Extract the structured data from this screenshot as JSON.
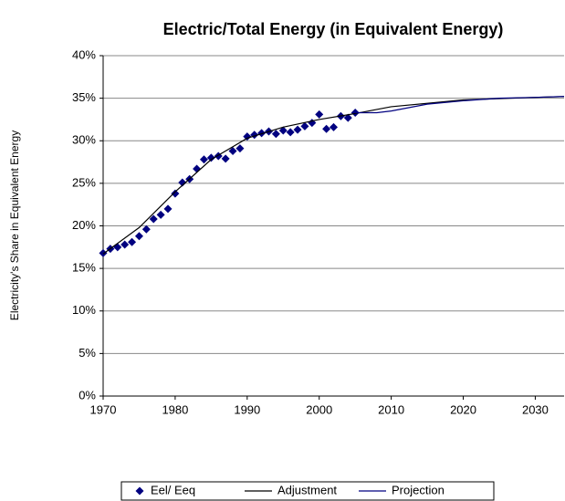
{
  "chart_data": {
    "type": "scatter",
    "title": "Electric/Total Energy (in Equivalent Energy)",
    "ylabel": "Electricity's Share in Equivalent Energy",
    "xlim": [
      1970,
      2034
    ],
    "xticks": [
      1970,
      1980,
      1990,
      2000,
      2010,
      2020,
      2030
    ],
    "ylim": [
      0,
      40
    ],
    "yticks": [
      {
        "value": 0,
        "label": "0%"
      },
      {
        "value": 5,
        "label": "5%"
      },
      {
        "value": 10,
        "label": "10%"
      },
      {
        "value": 15,
        "label": "15%"
      },
      {
        "value": 20,
        "label": "20%"
      },
      {
        "value": 25,
        "label": "25%"
      },
      {
        "value": 30,
        "label": "30%"
      },
      {
        "value": 35,
        "label": "35%"
      },
      {
        "value": 40,
        "label": "40%"
      }
    ],
    "grid": true,
    "legend": "bottom",
    "series": [
      {
        "name": "Eel/ Eeq",
        "style": "markers",
        "color": "#000080",
        "x": [
          1970,
          1971,
          1972,
          1973,
          1974,
          1975,
          1976,
          1977,
          1978,
          1979,
          1980,
          1981,
          1982,
          1983,
          1984,
          1985,
          1986,
          1987,
          1988,
          1989,
          1990,
          1991,
          1992,
          1993,
          1994,
          1995,
          1996,
          1997,
          1998,
          1999,
          2000,
          2001,
          2002,
          2003,
          2004,
          2005
        ],
        "values": [
          16.8,
          17.3,
          17.5,
          17.8,
          18.1,
          18.8,
          19.6,
          20.8,
          21.3,
          22.0,
          23.8,
          25.1,
          25.5,
          26.7,
          27.8,
          28.0,
          28.2,
          27.9,
          28.8,
          29.1,
          30.5,
          30.7,
          30.9,
          31.1,
          30.8,
          31.2,
          31.0,
          31.3,
          31.7,
          32.1,
          33.1,
          31.4,
          31.6,
          32.9,
          32.7,
          33.3
        ]
      },
      {
        "name": "Adjustment",
        "style": "line",
        "color": "#000000",
        "x": [
          1970,
          1975,
          1980,
          1985,
          1990,
          1995,
          2000,
          2005,
          2010,
          2020,
          2030,
          2034
        ],
        "values": [
          16.7,
          19.8,
          24.0,
          27.8,
          30.3,
          31.6,
          32.5,
          33.2,
          34.0,
          34.8,
          35.1,
          35.2
        ]
      },
      {
        "name": "Projection",
        "style": "line",
        "color": "#000080",
        "x": [
          2005,
          2008,
          2010,
          2015,
          2020,
          2025,
          2030,
          2034
        ],
        "values": [
          33.3,
          33.3,
          33.5,
          34.3,
          34.7,
          35.0,
          35.1,
          35.2
        ]
      }
    ]
  }
}
